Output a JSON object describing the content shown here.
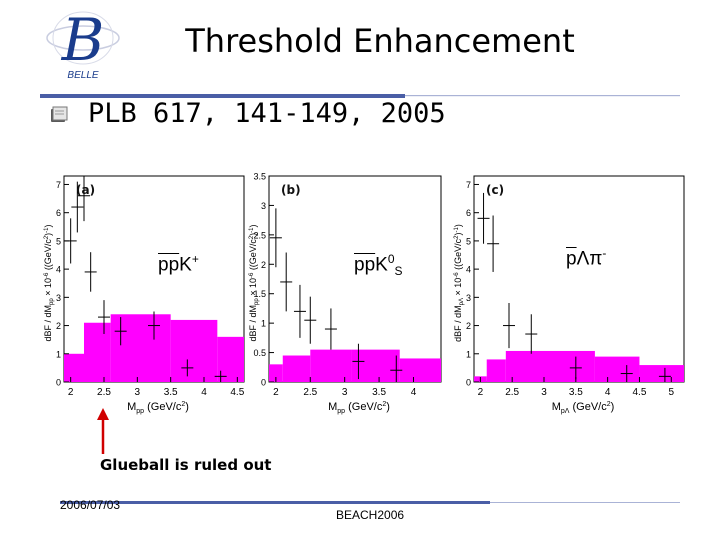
{
  "header": {
    "title": "Threshold Enhancement",
    "logo_text": "BELLE",
    "logo_color": "#1a3c8c"
  },
  "subtitle": "PLB 617, 141-149, 2005",
  "colors": {
    "accent": "#5b6fb0",
    "histogram": "#ff00ff",
    "marker": "#000000"
  },
  "chart_data": [
    {
      "type": "bar",
      "panel_label": "(a)",
      "channel": {
        "base": "pp",
        "bar_len": 2,
        "rest": "K",
        "sup": "+"
      },
      "ylabel": "dBF / dM",
      "ylabel_sub": "pp",
      "ylabel_tail": " × 10",
      "ylabel_exp": "-6",
      "ylabel_unit": "((GeV/c",
      "ylabel_unit_exp": "2",
      "ylabel_unit_tail": ")",
      "ylabel_unit_exp2": "-1",
      "ylabel_close": ")",
      "xlabel": "M",
      "xlabel_sub": "pp",
      "xlabel_unit": "(GeV/c",
      "xlabel_unit_exp": "2",
      "xlabel_close": ")",
      "xticks": [
        "2",
        "2.5",
        "3",
        "3.5",
        "4",
        "4.5"
      ],
      "yticks": [
        "0",
        "1",
        "2",
        "3",
        "4",
        "5",
        "6",
        "7"
      ],
      "xlim": [
        1.9,
        4.6
      ],
      "ylim": [
        0,
        7.3
      ],
      "points": [
        {
          "x": 2.0,
          "y": 5.0,
          "err": 0.8
        },
        {
          "x": 2.1,
          "y": 6.2,
          "err": 0.9
        },
        {
          "x": 2.2,
          "y": 6.6,
          "err": 0.9
        },
        {
          "x": 2.3,
          "y": 3.9,
          "err": 0.7
        },
        {
          "x": 2.5,
          "y": 2.3,
          "err": 0.6
        },
        {
          "x": 2.75,
          "y": 1.8,
          "err": 0.5
        },
        {
          "x": 3.25,
          "y": 2.0,
          "err": 0.5
        },
        {
          "x": 3.75,
          "y": 0.5,
          "err": 0.3
        },
        {
          "x": 4.25,
          "y": 0.2,
          "err": 0.2
        }
      ],
      "histogram": [
        {
          "x0": 1.9,
          "x1": 2.2,
          "y": 1.0
        },
        {
          "x0": 2.2,
          "x1": 2.6,
          "y": 2.1
        },
        {
          "x0": 2.6,
          "x1": 3.5,
          "y": 2.4
        },
        {
          "x0": 3.5,
          "x1": 4.2,
          "y": 2.2
        },
        {
          "x0": 4.2,
          "x1": 4.6,
          "y": 1.6
        }
      ]
    },
    {
      "type": "bar",
      "panel_label": "(b)",
      "channel": {
        "base": "pp",
        "bar_len": 2,
        "rest": "K",
        "sup": "0",
        "sub": "S"
      },
      "ylabel": "dBF / dM",
      "ylabel_sub": "pp",
      "ylabel_tail": " × 10",
      "ylabel_exp": "-6",
      "ylabel_unit": "((GeV/c",
      "ylabel_unit_exp": "2",
      "ylabel_unit_tail": ")",
      "ylabel_unit_exp2": "-1",
      "ylabel_close": ")",
      "xlabel": "M",
      "xlabel_sub": "pp",
      "xlabel_unit": "(GeV/c",
      "xlabel_unit_exp": "2",
      "xlabel_close": ")",
      "xticks": [
        "2",
        "2.5",
        "3",
        "3.5",
        "4"
      ],
      "yticks": [
        "0",
        "0.5",
        "1",
        "1.5",
        "2",
        "2.5",
        "3",
        "3.5"
      ],
      "xlim": [
        1.9,
        4.4
      ],
      "ylim": [
        0,
        3.5
      ],
      "points": [
        {
          "x": 2.0,
          "y": 2.45,
          "err": 0.5
        },
        {
          "x": 2.15,
          "y": 1.7,
          "err": 0.5
        },
        {
          "x": 2.35,
          "y": 1.2,
          "err": 0.45
        },
        {
          "x": 2.5,
          "y": 1.05,
          "err": 0.4
        },
        {
          "x": 2.8,
          "y": 0.9,
          "err": 0.35
        },
        {
          "x": 3.2,
          "y": 0.35,
          "err": 0.3
        },
        {
          "x": 3.75,
          "y": 0.2,
          "err": 0.25
        }
      ],
      "histogram": [
        {
          "x0": 1.9,
          "x1": 2.1,
          "y": 0.3
        },
        {
          "x0": 2.1,
          "x1": 2.5,
          "y": 0.45
        },
        {
          "x0": 2.5,
          "x1": 3.1,
          "y": 0.55
        },
        {
          "x0": 3.1,
          "x1": 3.8,
          "y": 0.55
        },
        {
          "x0": 3.8,
          "x1": 4.4,
          "y": 0.4
        }
      ]
    },
    {
      "type": "bar",
      "panel_label": "(c)",
      "channel": {
        "base": "p",
        "bar_len": 1,
        "rest": "Λπ",
        "sup": "-"
      },
      "ylabel": "dBF / dM",
      "ylabel_sub": "pΛ",
      "ylabel_tail": " × 10",
      "ylabel_exp": "-6",
      "ylabel_unit": "((GeV/c",
      "ylabel_unit_exp": "2",
      "ylabel_unit_tail": ")",
      "ylabel_unit_exp2": "-1",
      "ylabel_close": ")",
      "xlabel": "M",
      "xlabel_sub": "pΛ",
      "xlabel_unit": "(GeV/c",
      "xlabel_unit_exp": "2",
      "xlabel_close": ")",
      "xticks": [
        "2",
        "2.5",
        "3",
        "3.5",
        "4",
        "4.5",
        "5"
      ],
      "yticks": [
        "0",
        "1",
        "2",
        "3",
        "4",
        "5",
        "6",
        "7"
      ],
      "xlim": [
        1.9,
        5.2
      ],
      "ylim": [
        0,
        7.3
      ],
      "points": [
        {
          "x": 2.05,
          "y": 5.8,
          "err": 0.9
        },
        {
          "x": 2.2,
          "y": 4.9,
          "err": 1.0
        },
        {
          "x": 2.45,
          "y": 2.0,
          "err": 0.8
        },
        {
          "x": 2.8,
          "y": 1.7,
          "err": 0.7
        },
        {
          "x": 3.5,
          "y": 0.5,
          "err": 0.4
        },
        {
          "x": 4.3,
          "y": 0.3,
          "err": 0.3
        },
        {
          "x": 4.9,
          "y": 0.2,
          "err": 0.3
        }
      ],
      "histogram": [
        {
          "x0": 1.9,
          "x1": 2.1,
          "y": 0.2
        },
        {
          "x0": 2.1,
          "x1": 2.4,
          "y": 0.8
        },
        {
          "x0": 2.4,
          "x1": 3.0,
          "y": 1.1
        },
        {
          "x0": 3.0,
          "x1": 3.8,
          "y": 1.1
        },
        {
          "x0": 3.8,
          "x1": 4.5,
          "y": 0.9
        },
        {
          "x0": 4.5,
          "x1": 5.2,
          "y": 0.6
        }
      ]
    }
  ],
  "annotation": "Glueball is ruled out",
  "footer": {
    "date": "2006/07/03",
    "conference": "BEACH2006"
  }
}
